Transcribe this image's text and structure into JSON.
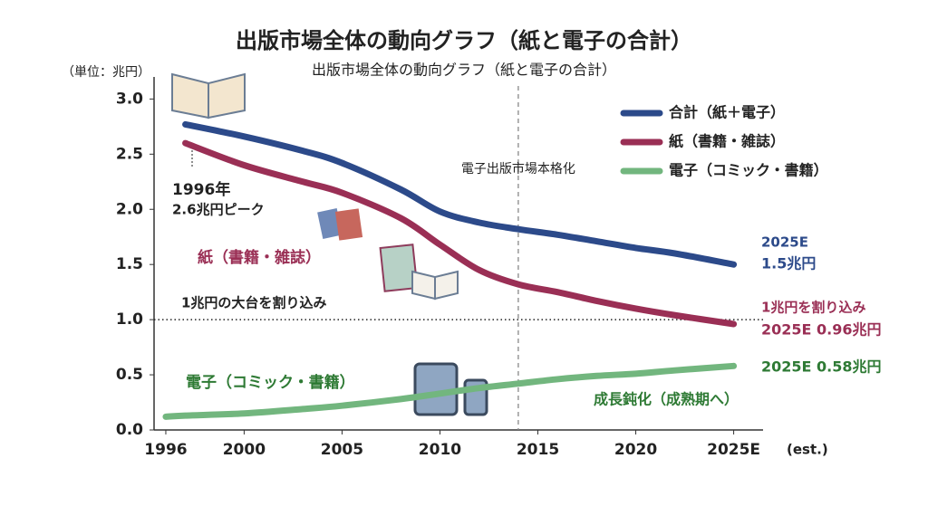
{
  "chart_data": {
    "type": "line",
    "title": "出版市場全体の動向グラフ（紙と電子の合計）",
    "subtitle": "出版市場全体の動向グラフ（紙と電子の合計）",
    "y_label": "（単位：兆円）",
    "x_label": "(est.)",
    "x": [
      1996,
      1997,
      2000,
      2003,
      2005,
      2008,
      2010,
      2012,
      2014,
      2016,
      2018,
      2020,
      2022,
      2025
    ],
    "series": [
      {
        "name": "合計（紙＋電子）",
        "color": "#2c4a8a",
        "values": [
          null,
          2.77,
          2.66,
          2.53,
          2.42,
          2.18,
          1.98,
          1.88,
          1.82,
          1.77,
          1.71,
          1.65,
          1.6,
          1.5
        ]
      },
      {
        "name": "紙（書籍・雑誌）",
        "color": "#9a2f55",
        "values": [
          null,
          2.6,
          2.4,
          2.25,
          2.15,
          1.92,
          1.68,
          1.45,
          1.32,
          1.25,
          1.17,
          1.1,
          1.04,
          0.96
        ]
      },
      {
        "name": "電子（コミック・書籍）",
        "color": "#72b67e",
        "values": [
          0.12,
          0.13,
          0.15,
          0.19,
          0.22,
          0.28,
          0.33,
          0.38,
          0.42,
          0.46,
          0.49,
          0.51,
          0.54,
          0.58
        ]
      }
    ],
    "xlim": [
      1995.4,
      2026.5
    ],
    "xticks": [
      1996,
      2000,
      2005,
      2010,
      2015,
      2020,
      {
        "value": 2025,
        "label": "2025E"
      }
    ],
    "ylim": [
      0,
      3.2
    ],
    "yticks": [
      {
        "value": 0,
        "label": "0.0"
      },
      0.5,
      {
        "value": 1,
        "label": "1.0"
      },
      1.5,
      {
        "value": 2,
        "label": "2.0"
      },
      2.5,
      {
        "value": 3,
        "label": "3.0"
      }
    ],
    "grid": false,
    "legend": "upper right",
    "reference_lines": [
      {
        "x": 2014,
        "label": "電子出版市場本格化"
      },
      {
        "y": 1,
        "label": "1兆円の大台を割り込み"
      }
    ],
    "annotations": [
      {
        "text": "1996年",
        "color": "#222222"
      },
      {
        "text": "2.6兆円ピーク",
        "color": "#222222"
      },
      {
        "text": "紙（書籍・雑誌）",
        "color": "#9a2f55"
      },
      {
        "text": "電子（コミック・書籍）",
        "color": "#2e7a34"
      },
      {
        "text": "2025E",
        "color": "#2c4a8a"
      },
      {
        "text": "1.5兆円",
        "color": "#2c4a8a"
      },
      {
        "text": "1兆円を割り込み",
        "color": "#9a2f55"
      },
      {
        "text": "2025E 0.96兆円",
        "color": "#9a2f55"
      },
      {
        "text": "2025E 0.58兆円",
        "color": "#2e7a34"
      },
      {
        "text": "成長鈍化（成熟期へ）",
        "color": "#2e7a34"
      }
    ]
  }
}
